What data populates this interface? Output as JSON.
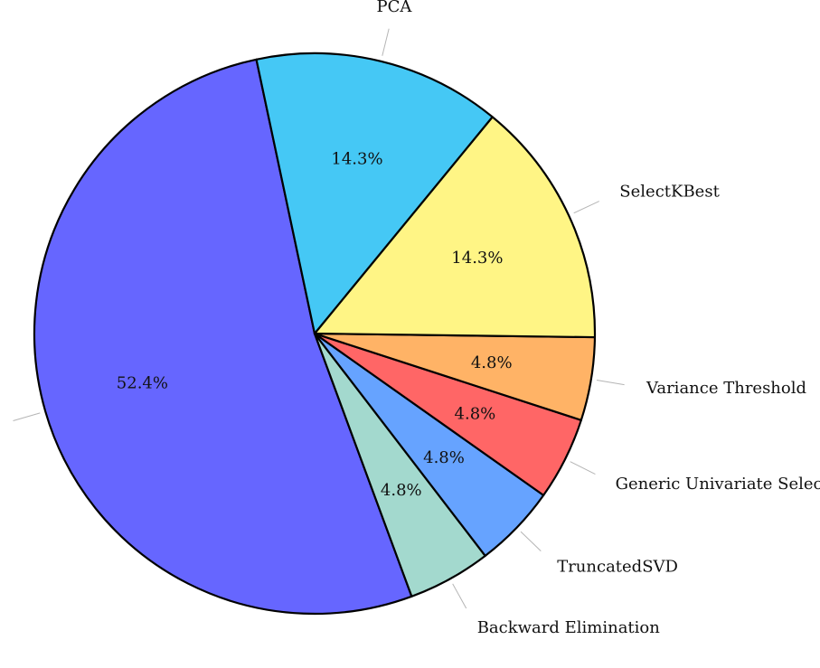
{
  "chart_data": {
    "type": "pie",
    "title": "",
    "slices": [
      {
        "label": "None",
        "value": 52.4,
        "value_label": "52.4%",
        "color": "#6666FF"
      },
      {
        "label": "Backward Elimination",
        "value": 4.8,
        "value_label": "4.8%",
        "color": "#A3D9CE"
      },
      {
        "label": "TruncatedSVD",
        "value": 4.8,
        "value_label": "4.8%",
        "color": "#66A3FF"
      },
      {
        "label": "Generic Univariate Select",
        "value": 4.8,
        "value_label": "4.8%",
        "color": "#FF6666"
      },
      {
        "label": "Variance Threshold",
        "value": 4.8,
        "value_label": "4.8%",
        "color": "#FFB366"
      },
      {
        "label": "SelectKBest",
        "value": 14.3,
        "value_label": "14.3%",
        "color": "#FFF585"
      },
      {
        "label": "PCA",
        "value": 14.3,
        "value_label": "14.3%",
        "color": "#45C8F5"
      }
    ],
    "start_angle_deg": 102,
    "direction": "counterclockwise",
    "legend": "none"
  }
}
